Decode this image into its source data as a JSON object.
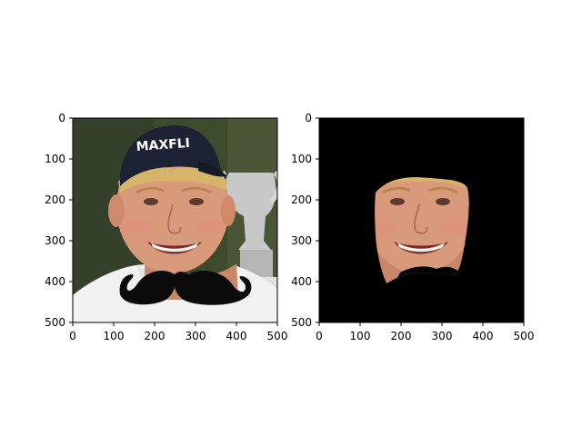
{
  "panels": [
    {
      "name": "original-with-mustache",
      "xlim": [
        0,
        500
      ],
      "ylim": [
        500,
        0
      ],
      "x_ticks": [
        "0",
        "100",
        "200",
        "300",
        "400",
        "500"
      ],
      "y_ticks": [
        "0",
        "100",
        "200",
        "300",
        "400",
        "500"
      ],
      "cap_text": "MAXFLI"
    },
    {
      "name": "masked-face",
      "xlim": [
        0,
        500
      ],
      "ylim": [
        500,
        0
      ],
      "x_ticks": [
        "0",
        "100",
        "200",
        "300",
        "400",
        "500"
      ],
      "y_ticks": [
        "0",
        "100",
        "200",
        "300",
        "400",
        "500"
      ]
    }
  ],
  "colors": {
    "background_green": "#3d4a2c",
    "skin": "#d99a7c",
    "cap": "#1c2233",
    "shirt": "#f2f2f2",
    "mustache": "#0b0b0b",
    "mask_black": "#000000"
  }
}
